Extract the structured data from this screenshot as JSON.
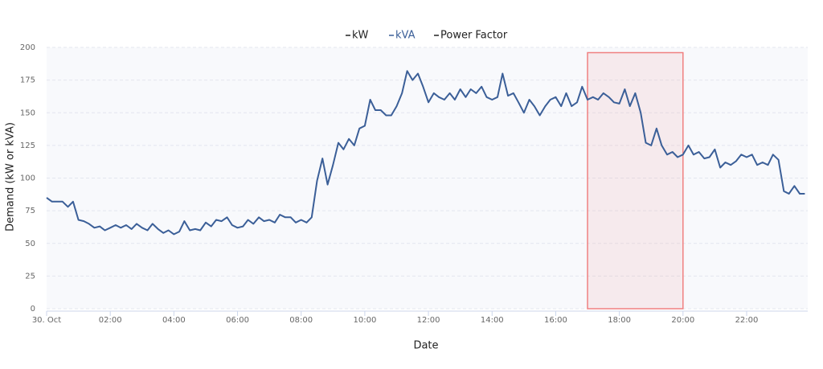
{
  "chart_data": {
    "type": "line",
    "y_label": "Demand (kW or kVA)",
    "x_label": "Date",
    "legend": [
      {
        "name": "kW",
        "color": "#222222"
      },
      {
        "name": "kVA",
        "color": "#3b5f98"
      },
      {
        "name": "Power Factor",
        "color": "#222222"
      }
    ],
    "xlim": [
      0,
      23.92
    ],
    "xticks": [
      {
        "value": 0,
        "label": "30. Oct"
      },
      {
        "value": 2,
        "label": "02:00"
      },
      {
        "value": 4,
        "label": "04:00"
      },
      {
        "value": 6,
        "label": "06:00"
      },
      {
        "value": 8,
        "label": "08:00"
      },
      {
        "value": 10,
        "label": "10:00"
      },
      {
        "value": 12,
        "label": "12:00"
      },
      {
        "value": 14,
        "label": "14:00"
      },
      {
        "value": 16,
        "label": "16:00"
      },
      {
        "value": 18,
        "label": "18:00"
      },
      {
        "value": 20,
        "label": "20:00"
      },
      {
        "value": 22,
        "label": "22:00"
      }
    ],
    "ylim": [
      0,
      200
    ],
    "yticks": [
      0,
      25,
      50,
      75,
      100,
      125,
      150,
      175,
      200
    ],
    "grid": true,
    "highlight": {
      "x": [
        17,
        20
      ],
      "y": [
        0,
        196
      ],
      "color": "#f08080"
    },
    "x": [
      0,
      0.17,
      0.33,
      0.5,
      0.67,
      0.83,
      1,
      1.17,
      1.33,
      1.5,
      1.67,
      1.83,
      2,
      2.17,
      2.33,
      2.5,
      2.67,
      2.83,
      3,
      3.17,
      3.33,
      3.5,
      3.67,
      3.83,
      4,
      4.17,
      4.33,
      4.5,
      4.67,
      4.83,
      5,
      5.17,
      5.33,
      5.5,
      5.67,
      5.83,
      6,
      6.17,
      6.33,
      6.5,
      6.67,
      6.83,
      7,
      7.17,
      7.33,
      7.5,
      7.67,
      7.83,
      8,
      8.17,
      8.33,
      8.5,
      8.67,
      8.83,
      9,
      9.17,
      9.33,
      9.5,
      9.67,
      9.83,
      10,
      10.17,
      10.33,
      10.5,
      10.67,
      10.83,
      11,
      11.17,
      11.33,
      11.5,
      11.67,
      11.83,
      12,
      12.17,
      12.33,
      12.5,
      12.67,
      12.83,
      13,
      13.17,
      13.33,
      13.5,
      13.67,
      13.83,
      14,
      14.17,
      14.33,
      14.5,
      14.67,
      14.83,
      15,
      15.17,
      15.33,
      15.5,
      15.67,
      15.83,
      16,
      16.17,
      16.33,
      16.5,
      16.67,
      16.83,
      17,
      17.17,
      17.33,
      17.5,
      17.67,
      17.83,
      18,
      18.17,
      18.33,
      18.5,
      18.67,
      18.83,
      19,
      19.17,
      19.33,
      19.5,
      19.67,
      19.83,
      20,
      20.17,
      20.33,
      20.5,
      20.67,
      20.83,
      21,
      21.17,
      21.33,
      21.5,
      21.67,
      21.83,
      22,
      22.17,
      22.33,
      22.5,
      22.67,
      22.83,
      23,
      23.17,
      23.33,
      23.5,
      23.67,
      23.83
    ],
    "series": [
      {
        "name": "kVA",
        "color": "#3b5f98",
        "values": [
          85,
          82,
          82,
          82,
          78,
          82,
          68,
          67,
          65,
          62,
          63,
          60,
          62,
          64,
          62,
          64,
          61,
          65,
          62,
          60,
          65,
          61,
          58,
          60,
          57,
          59,
          67,
          60,
          61,
          60,
          66,
          63,
          68,
          67,
          70,
          64,
          62,
          63,
          68,
          65,
          70,
          67,
          68,
          66,
          72,
          70,
          70,
          66,
          68,
          66,
          70,
          98,
          115,
          95,
          110,
          127,
          122,
          130,
          125,
          138,
          140,
          160,
          152,
          152,
          148,
          148,
          155,
          165,
          182,
          175,
          180,
          170,
          158,
          165,
          162,
          160,
          165,
          160,
          168,
          162,
          168,
          165,
          170,
          162,
          160,
          162,
          180,
          163,
          165,
          158,
          150,
          160,
          155,
          148,
          155,
          160,
          162,
          155,
          165,
          155,
          158,
          170,
          160,
          162,
          160,
          165,
          162,
          158,
          157,
          168,
          155,
          165,
          150,
          127,
          125,
          138,
          125,
          118,
          120,
          116,
          118,
          125,
          118,
          120,
          115,
          116,
          122,
          108,
          112,
          110,
          113,
          118,
          116,
          118,
          110,
          112,
          110,
          118,
          114,
          90,
          88,
          94,
          88,
          88
        ]
      }
    ]
  }
}
